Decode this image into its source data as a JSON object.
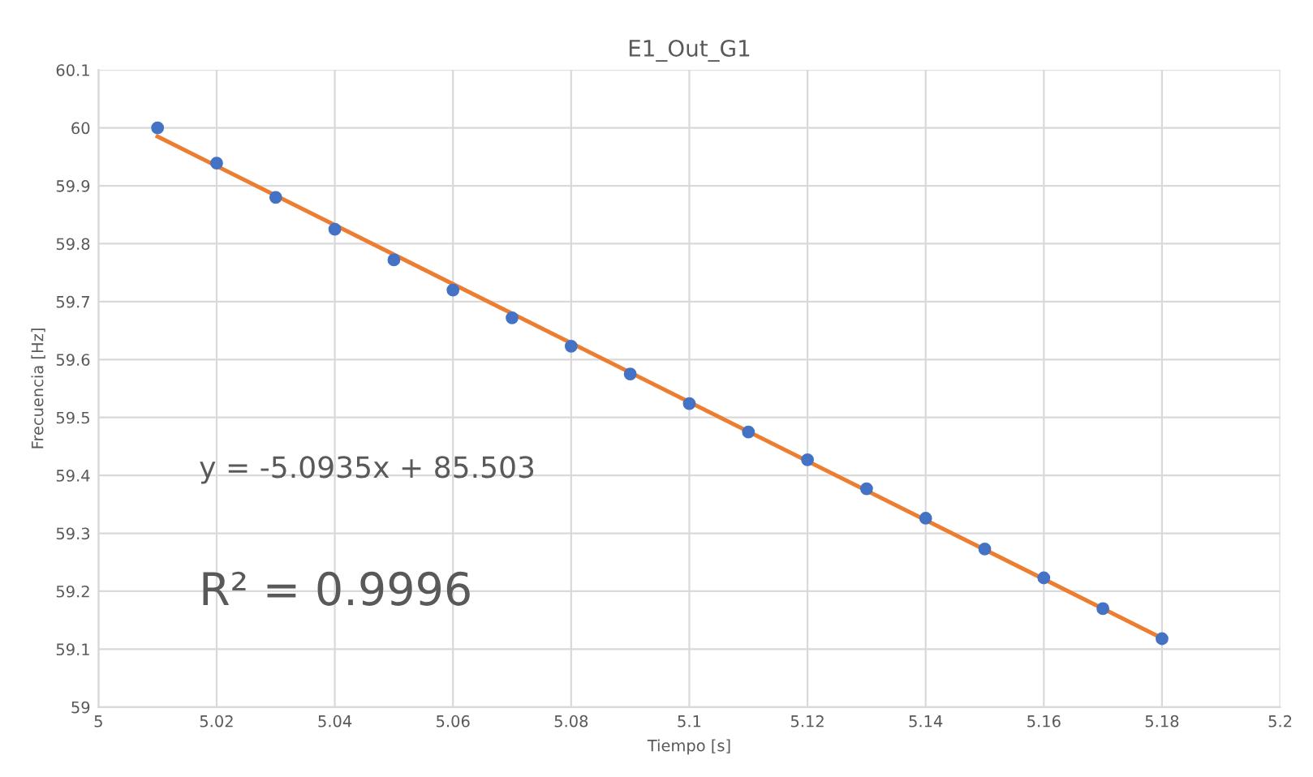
{
  "chart_data": {
    "type": "scatter",
    "title": "E1_Out_G1",
    "xlabel": "Tiempo [s]",
    "ylabel": "Frecuencia [Hz]",
    "x": [
      5.01,
      5.02,
      5.03,
      5.04,
      5.05,
      5.06,
      5.07,
      5.08,
      5.09,
      5.1,
      5.11,
      5.12,
      5.13,
      5.14,
      5.15,
      5.16,
      5.17,
      5.18
    ],
    "series": [
      {
        "color": "#4472c4",
        "marker": "circle",
        "values": [
          60.0,
          59.939,
          59.88,
          59.825,
          59.772,
          59.72,
          59.672,
          59.623,
          59.575,
          59.524,
          59.475,
          59.427,
          59.377,
          59.326,
          59.273,
          59.223,
          59.17,
          59.118
        ]
      },
      {
        "type": "line",
        "color": "#ed7d31",
        "x": [
          5.01,
          5.18
        ],
        "values": [
          59.985,
          59.119
        ],
        "marker": "none",
        "line_style": "solid"
      }
    ],
    "annotations": [
      "y = -5.0935x + 85.503",
      "R² = 0.9996"
    ],
    "xlim": [
      5,
      5.2
    ],
    "xticks": [
      5,
      5.02,
      5.04,
      5.06,
      5.08,
      5.1,
      5.12,
      5.14,
      5.16,
      5.18,
      5.2
    ],
    "ylim": [
      59,
      60.1
    ],
    "yticks": [
      59,
      59.1,
      59.2,
      59.3,
      59.4,
      59.5,
      59.6,
      59.7,
      59.8,
      59.9,
      60,
      60.1
    ],
    "grid": true,
    "legend": false
  }
}
